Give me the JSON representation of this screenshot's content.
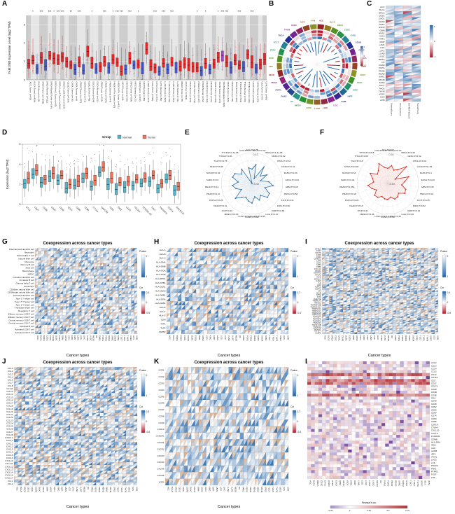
{
  "figure": {
    "background": "#ffffff"
  },
  "panels": {
    "A": {
      "label": "A"
    },
    "B": {
      "label": "B"
    },
    "C": {
      "label": "C"
    },
    "D": {
      "label": "D"
    },
    "E": {
      "label": "E"
    },
    "F": {
      "label": "F"
    },
    "G": {
      "label": "G"
    },
    "H": {
      "label": "H"
    },
    "I": {
      "label": "I"
    },
    "J": {
      "label": "J"
    },
    "K": {
      "label": "K"
    },
    "L": {
      "label": "L"
    }
  },
  "cancer_types": [
    "ACC",
    "BLCA",
    "BRCA",
    "CESC",
    "CHOL",
    "COAD",
    "DLBC",
    "ESCA",
    "GBM",
    "HNSC",
    "KICH",
    "KIRC",
    "KIRP",
    "LAML",
    "LGG",
    "LIHC",
    "LUAD",
    "LUSC",
    "MESO",
    "OV",
    "PAAD",
    "PCPG",
    "PRAD",
    "READ",
    "SARC",
    "SKCM",
    "STAD",
    "TGCT",
    "THCA",
    "THYM",
    "UCEC",
    "UCS",
    "UVM"
  ],
  "colors": {
    "tumor": "#e41a1c",
    "normal": "#3b4cc0",
    "metastasis": "#9a3bbf",
    "cor_pos": "#2166ac",
    "cor_neg": "#b2182b",
    "purple": "#6a3d9a",
    "dark_red": "#a50f15"
  },
  "chart_data": [
    {
      "id": "A",
      "type": "boxplot",
      "seed": 1,
      "ylabel": "FAM178B Expression Level (log2 TPM)",
      "ylim": [
        0,
        7
      ],
      "yticks": [
        0,
        2,
        4,
        6
      ],
      "group_colors": {
        "T": "#e41a1c",
        "N": "#3b4cc0",
        "M": "#9a3bbf"
      },
      "categories": [
        "ACC.Tumor (n=79)",
        "BLCA.Tumor (n=408)",
        "BLCA.Normal (n=19)",
        "BRCA.Tumor (n=1093)",
        "BRCA.Normal (n=112)",
        "BRCA-Basal.Tumor (n=190)",
        "BRCA-Her2.Tumor (n=82)",
        "BRCA-LumA.Tumor (n=564)",
        "BRCA-LumB.Tumor (n=217)",
        "CESC.Tumor (n=304)",
        "CHOL.Tumor (n=36)",
        "CHOL.Normal (n=9)",
        "COAD.Tumor (n=457)",
        "COAD.Normal (n=41)",
        "DLBC.Tumor (n=48)",
        "ESCA.Tumor (n=184)",
        "ESCA.Normal (n=11)",
        "GBM.Tumor (n=153)",
        "HNSC.Tumor (n=520)",
        "HNSC.Normal (n=44)",
        "HNSC-HPV+.Tumor (n=97)",
        "HNSC-HPV-.Tumor (n=421)",
        "KICH.Tumor (n=66)",
        "KICH.Normal (n=25)",
        "KIRC.Tumor (n=533)",
        "KIRC.Normal (n=72)",
        "KIRP.Tumor (n=290)",
        "KIRP.Normal (n=32)",
        "LAML.Tumor (n=173)",
        "LGG.Tumor (n=516)",
        "LIHC.Tumor (n=371)",
        "LIHC.Normal (n=50)",
        "LUAD.Tumor (n=515)",
        "LUAD.Normal (n=59)",
        "LUSC.Tumor (n=501)",
        "LUSC.Normal (n=51)",
        "MESO.Tumor (n=87)",
        "OV.Tumor (n=303)",
        "PAAD.Tumor (n=178)",
        "PCPG.Tumor (n=179)",
        "PRAD.Tumor (n=497)",
        "PRAD.Normal (n=52)",
        "READ.Tumor (n=166)",
        "READ.Normal (n=10)",
        "SARC.Tumor (n=259)",
        "SKCM.Tumor (n=103)",
        "SKCM.Metastasis (n=368)",
        "STAD.Tumor (n=415)",
        "STAD.Normal (n=35)",
        "TGCT.Tumor (n=150)",
        "THCA.Tumor (n=501)",
        "THCA.Normal (n=59)",
        "THYM.Tumor (n=120)",
        "UCEC.Tumor (n=545)",
        "UCEC.Normal (n=35)",
        "UCS.Tumor (n=57)",
        "UVM.Tumor (n=80)"
      ],
      "groups": "TTNTNTTTTTTNTNTTNTTNTTTNTNTNTTTNTNTNTTTTTNTNTTMTNTTNTTNTT",
      "medians": [
        1.8,
        2.1,
        1.2,
        2.4,
        1.5,
        2.6,
        2.3,
        2.2,
        2.5,
        2.0,
        1.6,
        1.1,
        1.9,
        1.0,
        3.1,
        1.8,
        1.2,
        1.4,
        2.0,
        1.3,
        2.2,
        1.9,
        0.9,
        1.1,
        2.3,
        1.6,
        1.7,
        1.2,
        3.3,
        1.5,
        1.3,
        0.9,
        1.8,
        1.1,
        1.9,
        1.2,
        1.5,
        1.7,
        1.6,
        1.4,
        1.3,
        1.0,
        1.8,
        1.1,
        1.7,
        2.4,
        2.6,
        1.9,
        1.3,
        2.1,
        1.6,
        1.3,
        2.8,
        1.9,
        1.2,
        1.7,
        2.2
      ],
      "significance": {
        "1": "*",
        "3": "***",
        "5": "***",
        "6": "*",
        "7": "***",
        "8": "***",
        "10": "**",
        "12": "***",
        "15": "*",
        "18": "***",
        "20": "*",
        "21": "***",
        "22": "***",
        "24": "***",
        "26": "*",
        "30": "***",
        "32": "***",
        "34": "***",
        "40": "*",
        "42": "*",
        "45": "*",
        "46": "***",
        "47": "***",
        "50": "***",
        "53": "***"
      }
    },
    {
      "id": "B",
      "type": "circos",
      "seed": 7,
      "cancers": [
        "ACC",
        "BLCA",
        "BRCA",
        "CESC",
        "CHOL",
        "COAD",
        "DLBC",
        "ESCA",
        "GBM",
        "HNSC",
        "KICH",
        "KIRC",
        "KIRP",
        "LAML",
        "LGG",
        "LIHC",
        "LUAD",
        "LUSC",
        "MESO",
        "OV",
        "PAAD",
        "PCPG",
        "PRAD",
        "READ",
        "SARC",
        "SKCM",
        "STAD",
        "TGCT",
        "THCA",
        "THYM",
        "UCEC",
        "UCS",
        "UVM"
      ],
      "legend": {
        "ticks": [
          "1",
          "0",
          "-1"
        ]
      }
    },
    {
      "id": "C",
      "type": "split-heatmap",
      "seed": 11,
      "cols": [
        "StromalScore",
        "ImmuneScore",
        "ESTIMATEScore",
        "TumorPurity"
      ],
      "rows_ref": "cancer_types",
      "legend": {
        "ticks": [
          "1",
          "0",
          "-1"
        ]
      }
    },
    {
      "id": "D",
      "type": "grouped-boxplot",
      "seed": 3,
      "ylabel": "Expression (log2 TPM)",
      "yticks": [
        0,
        2,
        4,
        6
      ],
      "legend_title": "Group",
      "group_labels": [
        "Normal",
        "Tumor"
      ],
      "group_colors": [
        "#56b4c9",
        "#e8745c"
      ],
      "categories": [
        "BTLA",
        "CD27",
        "CD28",
        "CD40",
        "CD48",
        "CD70",
        "CD80",
        "CD86",
        "CTLA4",
        "HAVCR2",
        "ICOS",
        "IDO1",
        "LAG3",
        "PDCD1",
        "PDCD1LG2",
        "TIGIT",
        "TNFRSF9",
        "CD274",
        "SIGLEC15"
      ],
      "series": [
        {
          "name": "Normal",
          "medians": [
            2.1,
            3.0,
            2.2,
            2.8,
            2.4,
            1.6,
            1.9,
            2.6,
            1.8,
            3.2,
            2.0,
            1.5,
            1.7,
            1.9,
            2.1,
            2.3,
            1.6,
            2.5,
            1.4
          ]
        },
        {
          "name": "Tumor",
          "medians": [
            2.6,
            3.4,
            2.5,
            3.1,
            2.9,
            2.0,
            2.3,
            3.1,
            2.4,
            3.7,
            2.6,
            2.2,
            2.3,
            2.5,
            2.6,
            2.9,
            2.1,
            2.9,
            1.8
          ]
        }
      ]
    },
    {
      "id": "E",
      "type": "radar",
      "max": 0.43,
      "axis_labels": [
        "0.43",
        "0",
        "-0.43"
      ],
      "color": "#2e6fa3",
      "labels": [
        "ACC;P=0.75",
        "BLCA;P=0.02",
        "BRCA;P=1.3e-08",
        "CESC;P=0.02",
        "CHOL;P=0.33",
        "COAD;P=0.32",
        "DLBC;P=0.26",
        "ESCA;P=0.64",
        "GBM;P=0.08",
        "HNSC;P=0.58",
        "KICH;P=0.31",
        "KIRC;P=0.06",
        "KIRP;P=0.86",
        "LGG;P=0.14",
        "LIHC;P=0.55",
        "LUAD;P=0.02",
        "LUSC;P=0.26",
        "MESO;P=0.93",
        "OV;P=0.42",
        "PAAD;P=0.01",
        "PCPG;P=0.28",
        "PRAD;P=0.47",
        "READ;P=0.14",
        "SARC;P=0.6",
        "SKCM;P=0.03",
        "STAD;P=0.08",
        "TGCT;P=0.75",
        "THCA;P=0.31",
        "THYM;P=1.3e-05",
        "UVM;P=0.9"
      ],
      "values": [
        -0.03,
        0.11,
        -0.28,
        0.14,
        -0.12,
        0.05,
        -0.18,
        0.04,
        0.16,
        -0.05,
        0.13,
        0.15,
        -0.02,
        0.08,
        -0.05,
        0.12,
        0.07,
        -0.01,
        0.05,
        0.19,
        -0.09,
        0.04,
        0.12,
        -0.04,
        0.14,
        0.12,
        -0.04,
        0.06,
        -0.43,
        0.02
      ]
    },
    {
      "id": "F",
      "type": "radar",
      "max": 0.54,
      "axis_labels": [
        "0.54",
        "0",
        "-0.54"
      ],
      "color": "#d6281f",
      "labels": [
        "ACC;P=0.92",
        "BLCA;P=0.04",
        "BRCA;P=0.45",
        "CESC;P=0.32",
        "CHOL;P=0.04",
        "COAD;P=5e-05",
        "DLBC;P=0.1",
        "ESCA;P=0.29",
        "GBM;P=0.38",
        "HNSC;P=0.01",
        "KICH;P=0.25",
        "KIRC;P=0.52",
        "KIRP;P=0.44",
        "LGG;P=0.28",
        "LIHC;P=0.35",
        "LUAD;P=0.66",
        "LUSC;P=0.9",
        "MESO;P=0.46",
        "OV;P=0.21",
        "PAAD;P=0.18",
        "PCPG;P=0.26",
        "PRAD;P=0.38",
        "READ;P=0.054",
        "SARC;P=0.44",
        "SKCM;P=0.64",
        "STAD;P=0.002",
        "TGCT;P=0.8",
        "THCA;P=0.66",
        "THYM;P=0.015",
        "UVM;P=0.48"
      ],
      "values": [
        -0.01,
        0.1,
        -0.03,
        0.06,
        0.34,
        -0.24,
        0.23,
        0.06,
        -0.05,
        0.12,
        0.15,
        -0.03,
        0.04,
        0.06,
        -0.05,
        0.02,
        0.01,
        -0.04,
        0.06,
        0.08,
        -0.08,
        0.04,
        0.16,
        -0.04,
        0.02,
        0.17,
        -0.05,
        0.02,
        0.22,
        0.04
      ]
    },
    {
      "id": "G",
      "type": "coexpression-heatmap",
      "seed": 21,
      "title": "Coexpression across cancer types",
      "xlabel": "Cancer types",
      "rows": [
        "Plasmacytoid dendritic cell",
        "Neutrophil",
        "Natural killer T cell",
        "Natural killer cell",
        "Monocyte",
        "Memory B cell",
        "Mast cell",
        "Macrophage",
        "MDSC",
        "Immature dendritic cell",
        "Immature B cell",
        "Gamma delta T cell",
        "Eosinophil",
        "CD56dim natural killer cell",
        "CD56bright natural killer cell",
        "Activated dendritic cell",
        "Type 2 T helper cell",
        "Type 17 T helper cell",
        "Type 1 T helper cell",
        "T follicular helper cell",
        "Regulatory T cell",
        "Effector memory CD8 T cell",
        "Effector memory CD4 T cell",
        "Central memory CD8 T cell",
        "Central memory CD4 T cell",
        "Activated B cell",
        "Activated CD8 T cell",
        "Activated CD4 T cell"
      ],
      "legends": [
        {
          "title": "Pvalue",
          "ticks": [
            "0",
            "1"
          ]
        },
        {
          "title": "Cor",
          "ticks": [
            "0.5",
            "0",
            "-0.5"
          ]
        }
      ]
    },
    {
      "id": "H",
      "type": "coexpression-heatmap",
      "seed": 22,
      "title": "Coexpression across cancer types",
      "xlabel": "Cancer types",
      "rows": [
        "HLA-A",
        "HLA-B",
        "HLA-C",
        "HLA-DMA",
        "HLA-DMB",
        "HLA-DOA",
        "HLA-DOB",
        "HLA-DPA1",
        "HLA-DPB1",
        "HLA-DQA1",
        "HLA-DQA2",
        "HLA-DQB1",
        "HLA-DRA",
        "HLA-DRB1",
        "HLA-E",
        "HLA-F",
        "HLA-G",
        "B2M",
        "TAP1",
        "TAP2",
        "TAPBP"
      ],
      "legends": [
        {
          "title": "Pvalue",
          "ticks": [
            "0",
            "1"
          ]
        },
        {
          "title": "Cor",
          "ticks": [
            "0.7",
            "0",
            "-0.4"
          ]
        }
      ]
    },
    {
      "id": "I",
      "type": "coexpression-heatmap",
      "seed": 23,
      "title": "Coexpression across cancer types",
      "xlabel": "Cancer types",
      "rows": [
        "BTNL2",
        "CD27",
        "CD276",
        "CD28",
        "CD40",
        "CD40LG",
        "CD48",
        "CD70",
        "CD80",
        "CD86",
        "CXCL12",
        "CXCR4",
        "ENTPD1",
        "HHLA2",
        "ICOS",
        "ICOSLG",
        "IL2RA",
        "IL6",
        "IL6R",
        "KLRC1",
        "KLRK1",
        "LTA",
        "MICB",
        "NT5E",
        "PVR",
        "RAET1E",
        "TMEM173",
        "TMIGD2",
        "TNFRSF13B",
        "TNFRSF13C",
        "TNFRSF14",
        "TNFRSF17",
        "TNFRSF18",
        "TNFRSF25",
        "TNFRSF4",
        "TNFRSF8",
        "TNFRSF9",
        "TNFSF13",
        "TNFSF13B",
        "TNFSF14",
        "TNFSF15",
        "TNFSF4",
        "ULBP1"
      ],
      "legends": [
        {
          "title": "Pvalue",
          "ticks": [
            "0",
            "1"
          ]
        },
        {
          "title": "Cor",
          "ticks": [
            "0.6",
            "0",
            "-0.6"
          ]
        }
      ]
    },
    {
      "id": "J",
      "type": "coexpression-heatmap",
      "seed": 24,
      "title": "Coexpression across cancer types",
      "xlabel": "Cancer types",
      "rows": [
        "CCL1",
        "CCL2",
        "CCL3",
        "CCL4",
        "CCL5",
        "CCL7",
        "CCL8",
        "CCL11",
        "CCL13",
        "CCL14",
        "CCL15",
        "CCL16",
        "CCL17",
        "CCL18",
        "CCL19",
        "CCL20",
        "CCL21",
        "CCL22",
        "CCL23",
        "CCL24",
        "CCL25",
        "CCL26",
        "CCL27",
        "CCL28",
        "CX3CL1",
        "CXCL1",
        "CXCL2",
        "CXCL3",
        "CXCL5",
        "CXCL6",
        "CXCL8",
        "CXCL9",
        "CXCL10",
        "CXCL11",
        "CXCL12",
        "CXCL13",
        "CXCL14",
        "CXCL16",
        "CXCL17",
        "XCL1",
        "XCL2"
      ],
      "legends": [
        {
          "title": "Pvalue",
          "ticks": [
            "0",
            "1"
          ]
        },
        {
          "title": "Cor",
          "ticks": [
            "0.8",
            "0",
            "-0.6"
          ]
        }
      ]
    },
    {
      "id": "K",
      "type": "coexpression-heatmap",
      "seed": 25,
      "title": "Coexpression across cancer types",
      "xlabel": "Cancer types",
      "rows": [
        "CCR1",
        "CCR2",
        "CCR3",
        "CCR4",
        "CCR5",
        "CCR6",
        "CCR7",
        "CCR8",
        "CCR9",
        "CCR10",
        "CX3CR1",
        "CXCR1",
        "CXCR2",
        "CXCR3",
        "CXCR4",
        "CXCR5",
        "CXCR6",
        "XCR1"
      ],
      "legends": [
        {
          "title": "Pvalue",
          "ticks": [
            "0",
            "1"
          ]
        },
        {
          "title": "Cor",
          "ticks": [
            "0.7",
            "0",
            "-0.6"
          ]
        }
      ]
    },
    {
      "id": "L",
      "type": "heatmap",
      "seed": 99,
      "rows": [
        "CCL2",
        "CCL3",
        "CCL4",
        "CCL5",
        "CD14",
        "CD163",
        "CD2",
        "CD27",
        "CD274",
        "CD28",
        "CD3D",
        "CD3E",
        "CD4",
        "CD40",
        "CD48",
        "CD52",
        "CD53",
        "CD69",
        "CD74",
        "CD8A",
        "CD86",
        "CSF1R",
        "CTLA4",
        "CXCL10",
        "CXCL9",
        "FCGR2B",
        "GZMB",
        "HLA-DRA",
        "IDO1",
        "IL10",
        "IL2RB",
        "IRF1",
        "ITGAL",
        "LAG3",
        "LCK",
        "PDCD1",
        "PRF1",
        "PTPRC",
        "TIGIT",
        "TNF"
      ],
      "cols_ref": "cancer_types",
      "legend": {
        "title": "Pearson's cor",
        "ticks": [
          "-0.25",
          "0",
          "0.25",
          "0.5",
          "0.75"
        ]
      }
    }
  ]
}
